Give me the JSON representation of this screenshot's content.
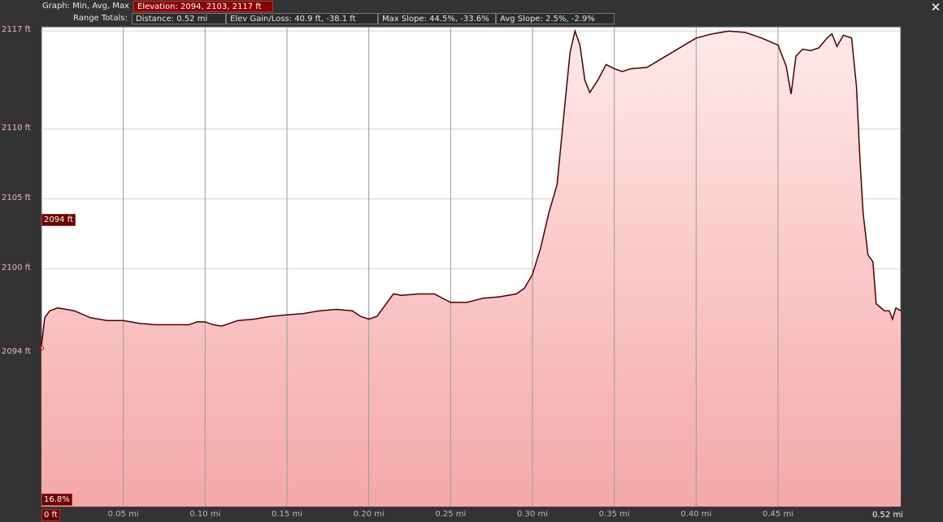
{
  "header": {
    "graph_label": "Graph: Min, Avg, Max",
    "elevation": "Elevation: 2094, 2103, 2117 ft",
    "range_label": "Range Totals:",
    "distance": "Distance: 0.52 mi",
    "elev_gain_loss": "Elev Gain/Loss: 40.9 ft, -38.1 ft",
    "max_slope": "Max Slope: 44.5%, -33.6%",
    "avg_slope": "Avg Slope: 2.5%, -2.9%"
  },
  "close_icon": "✕",
  "markers": {
    "current_elevation": "2094 ft",
    "slope": "16.8%",
    "start": "0 ft",
    "end": "0.52 mi"
  },
  "colors": {
    "background": "#333333",
    "plot_bg": "#ffffff",
    "fill_top": "#ffe9e9",
    "fill_bottom": "#f5a8a8",
    "line": "#4a0000",
    "highlight": "#8b0000"
  },
  "chart_data": {
    "type": "area",
    "xlabel": "",
    "ylabel": "",
    "xlim": [
      0,
      0.525
    ],
    "ylim": [
      2083,
      2117.3
    ],
    "y_ticks": [
      {
        "value": 2117,
        "label": "2117 ft"
      },
      {
        "value": 2110,
        "label": "2110 ft"
      },
      {
        "value": 2105,
        "label": "2105 ft"
      },
      {
        "value": 2100,
        "label": "2100 ft"
      },
      {
        "value": 2094,
        "label": "2094 ft"
      }
    ],
    "x_ticks": [
      {
        "value": 0.05,
        "label": "0.05 mi"
      },
      {
        "value": 0.1,
        "label": "0.10 mi"
      },
      {
        "value": 0.15,
        "label": "0.15 mi"
      },
      {
        "value": 0.2,
        "label": "0.20 mi"
      },
      {
        "value": 0.25,
        "label": "0.25 mi"
      },
      {
        "value": 0.3,
        "label": "0.30 mi"
      },
      {
        "value": 0.35,
        "label": "0.35 mi"
      },
      {
        "value": 0.4,
        "label": "0.40 mi"
      },
      {
        "value": 0.45,
        "label": "0.45 mi"
      }
    ],
    "grid": true,
    "series": [
      {
        "x": [
          0,
          0.002,
          0.005,
          0.01,
          0.02,
          0.03,
          0.04,
          0.05,
          0.06,
          0.07,
          0.08,
          0.09,
          0.095,
          0.1,
          0.105,
          0.11,
          0.115,
          0.12,
          0.13,
          0.14,
          0.15,
          0.16,
          0.17,
          0.18,
          0.19,
          0.195,
          0.2,
          0.205,
          0.21,
          0.215,
          0.22,
          0.23,
          0.24,
          0.25,
          0.26,
          0.27,
          0.28,
          0.29,
          0.295,
          0.3,
          0.305,
          0.31,
          0.315,
          0.32,
          0.323,
          0.326,
          0.329,
          0.332,
          0.335,
          0.34,
          0.345,
          0.35,
          0.355,
          0.36,
          0.37,
          0.38,
          0.39,
          0.4,
          0.41,
          0.42,
          0.43,
          0.44,
          0.45,
          0.455,
          0.458,
          0.461,
          0.465,
          0.47,
          0.475,
          0.48,
          0.483,
          0.486,
          0.49,
          0.495,
          0.498,
          0.5,
          0.502,
          0.505,
          0.508,
          0.51,
          0.515,
          0.518,
          0.52,
          0.522,
          0.525
        ],
        "y": [
          2094.5,
          2096.5,
          2097,
          2097.2,
          2097,
          2096.5,
          2096.3,
          2096.3,
          2096.1,
          2096,
          2096,
          2096,
          2096.2,
          2096.2,
          2096,
          2095.9,
          2096.1,
          2096.3,
          2096.4,
          2096.6,
          2096.7,
          2096.8,
          2097,
          2097.1,
          2097,
          2096.6,
          2096.4,
          2096.6,
          2097.4,
          2098.2,
          2098.1,
          2098.2,
          2098.2,
          2097.6,
          2097.6,
          2097.9,
          2098,
          2098.2,
          2098.6,
          2099.6,
          2101.5,
          2104,
          2106,
          2112,
          2115.5,
          2117,
          2116,
          2113.5,
          2112.6,
          2113.5,
          2114.6,
          2114.3,
          2114.1,
          2114.3,
          2114.4,
          2115.1,
          2115.8,
          2116.5,
          2116.8,
          2117,
          2116.9,
          2116.5,
          2116,
          2114.5,
          2112.5,
          2115.2,
          2115.7,
          2115.6,
          2115.8,
          2116.5,
          2116.8,
          2115.9,
          2116.7,
          2116.5,
          2113,
          2108,
          2104,
          2101,
          2100.5,
          2097.5,
          2097,
          2097,
          2096.4,
          2097.2,
          2097
        ]
      }
    ]
  }
}
